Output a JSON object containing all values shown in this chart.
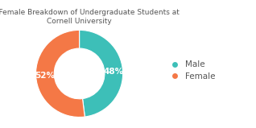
{
  "title": "Male/Female Breakdown of Undergraduate Students at\nCornell University",
  "labels": [
    "Male",
    "Female"
  ],
  "values": [
    48,
    52
  ],
  "colors": [
    "#3dbfb8",
    "#f47846"
  ],
  "autopct_labels": [
    "48%",
    "52%"
  ],
  "legend_labels": [
    "Male",
    "Female"
  ],
  "title_fontsize": 6.5,
  "autopct_fontsize": 7.5,
  "legend_fontsize": 7.5,
  "background_color": "#ffffff",
  "donut_width": 0.42,
  "startangle": 90
}
